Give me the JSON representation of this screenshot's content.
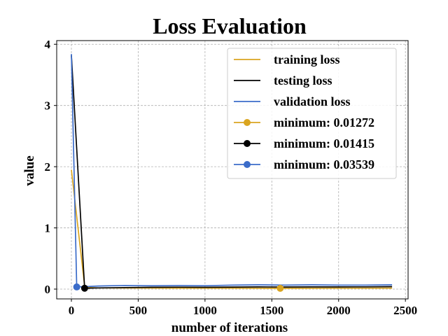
{
  "chart_data": {
    "type": "line",
    "title": "Loss Evaluation",
    "xlabel": "number of iterations",
    "ylabel": "value",
    "xlim": [
      -110,
      2520
    ],
    "ylim": [
      -0.16,
      4.06
    ],
    "xticks": [
      0,
      500,
      1000,
      1500,
      2000,
      2500
    ],
    "yticks": [
      0,
      1,
      2,
      3,
      4
    ],
    "grid": true,
    "legend_position": "top-right",
    "series": [
      {
        "name": "training loss",
        "color": "#DAA520",
        "x": [
          0,
          100,
          200,
          400,
          600,
          800,
          1000,
          1200,
          1400,
          1563,
          1800,
          2000,
          2200,
          2400
        ],
        "y": [
          1.95,
          0.03,
          0.02,
          0.018,
          0.017,
          0.016,
          0.015,
          0.015,
          0.014,
          0.013,
          0.014,
          0.015,
          0.015,
          0.016
        ]
      },
      {
        "name": "testing loss",
        "color": "#000000",
        "x": [
          0,
          99,
          200,
          400,
          600,
          800,
          1000,
          1200,
          1400,
          1600,
          1800,
          2000,
          2200,
          2400
        ],
        "y": [
          3.82,
          0.014,
          0.02,
          0.025,
          0.03,
          0.032,
          0.03,
          0.033,
          0.035,
          0.034,
          0.036,
          0.035,
          0.037,
          0.04
        ]
      },
      {
        "name": "validation loss",
        "color": "#3B6CC9",
        "x": [
          0,
          40,
          100,
          200,
          300,
          400,
          600,
          800,
          1000,
          1200,
          1400,
          1600,
          1800,
          2000,
          2200,
          2400
        ],
        "y": [
          3.84,
          0.035,
          0.04,
          0.05,
          0.055,
          0.06,
          0.055,
          0.06,
          0.055,
          0.065,
          0.07,
          0.065,
          0.07,
          0.065,
          0.065,
          0.07
        ]
      }
    ],
    "minima": [
      {
        "label": "minimum: 0.01272",
        "x": 1563,
        "y": 0.01272,
        "color": "#DAA520"
      },
      {
        "label": "minimum: 0.01415",
        "x": 99,
        "y": 0.01415,
        "color": "#000000"
      },
      {
        "label": "minimum: 0.03539",
        "x": 40,
        "y": 0.03539,
        "color": "#3B6CC9"
      }
    ]
  }
}
